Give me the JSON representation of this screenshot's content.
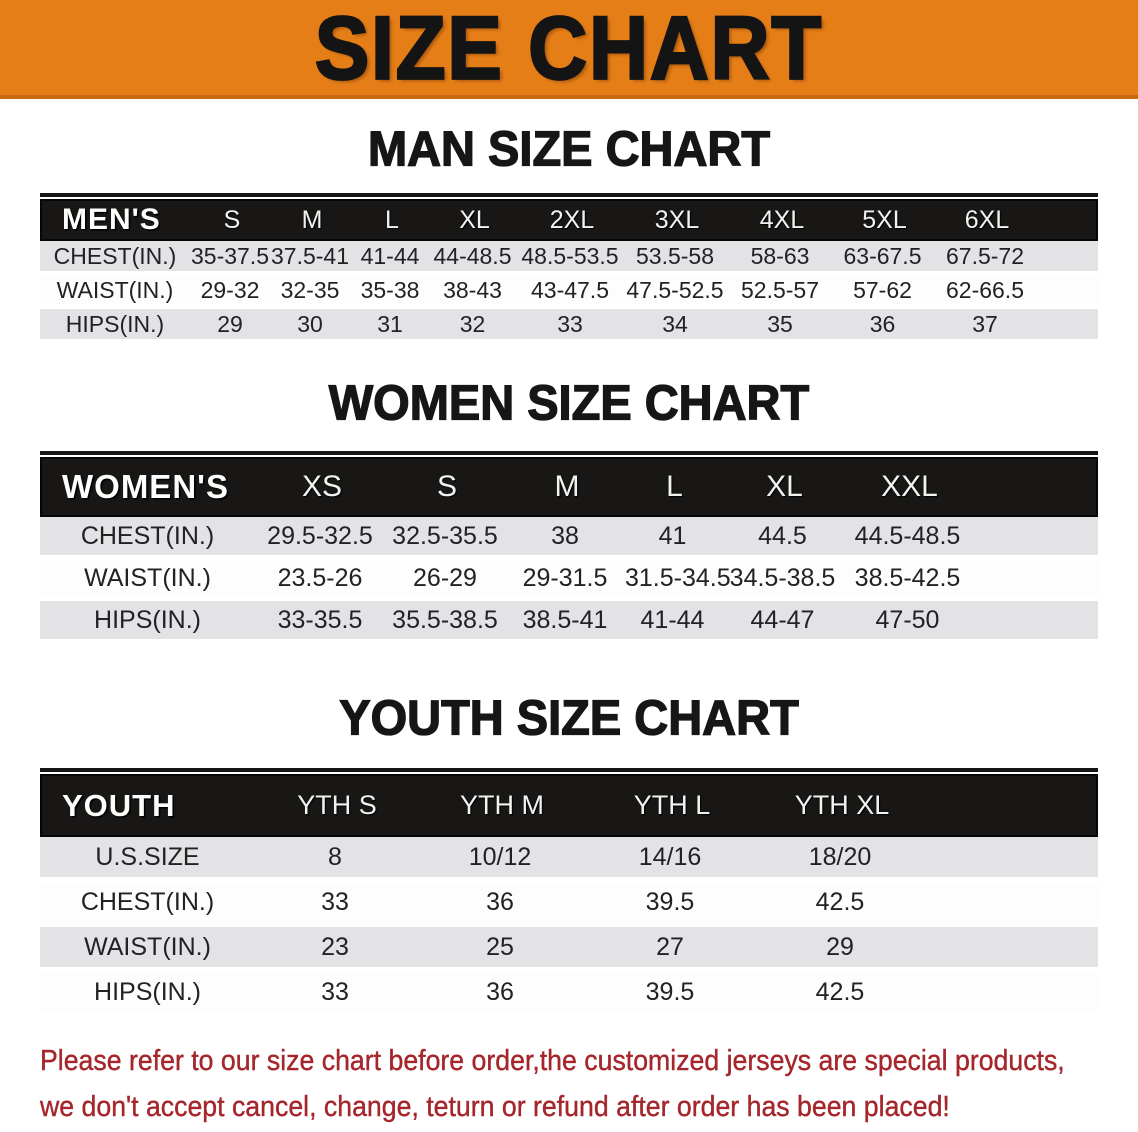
{
  "banner": {
    "title": "SIZE CHART"
  },
  "colors": {
    "banner_bg": "#E67E17",
    "banner_edge": "#C9690F",
    "header_bar": "#181716",
    "row_gray": "#E3E3E5",
    "footer_red": "#A5262B"
  },
  "sections": [
    {
      "heading": "MAN SIZE CHART",
      "table": {
        "label": "MEN'S",
        "columns": [
          "S",
          "M",
          "L",
          "XL",
          "2XL",
          "3XL",
          "4XL",
          "5XL",
          "6XL"
        ],
        "rows": [
          {
            "label": "CHEST(IN.)",
            "values": [
              "35-37.5",
              "37.5-41",
              "41-44",
              "44-48.5",
              "48.5-53.5",
              "53.5-58",
              "58-63",
              "63-67.5",
              "67.5-72"
            ]
          },
          {
            "label": "WAIST(IN.)",
            "values": [
              "29-32",
              "32-35",
              "35-38",
              "38-43",
              "43-47.5",
              "47.5-52.5",
              "52.5-57",
              "57-62",
              "62-66.5"
            ]
          },
          {
            "label": "HIPS(IN.)",
            "values": [
              "29",
              "30",
              "31",
              "32",
              "33",
              "34",
              "35",
              "36",
              "37"
            ]
          }
        ]
      }
    },
    {
      "heading": "WOMEN SIZE CHART",
      "table": {
        "label": "WOMEN'S",
        "columns": [
          "XS",
          "S",
          "M",
          "L",
          "XL",
          "XXL"
        ],
        "rows": [
          {
            "label": "CHEST(IN.)",
            "values": [
              "29.5-32.5",
              "32.5-35.5",
              "38",
              "41",
              "44.5",
              "44.5-48.5"
            ]
          },
          {
            "label": "WAIST(IN.)",
            "values": [
              "23.5-26",
              "26-29",
              "29-31.5",
              "31.5-34.5",
              "34.5-38.5",
              "38.5-42.5"
            ]
          },
          {
            "label": "HIPS(IN.)",
            "values": [
              "33-35.5",
              "35.5-38.5",
              "38.5-41",
              "41-44",
              "44-47",
              "47-50"
            ]
          }
        ]
      }
    },
    {
      "heading": "YOUTH SIZE CHART",
      "table": {
        "label": "YOUTH",
        "columns": [
          "YTH S",
          "YTH M",
          "YTH L",
          "YTH XL"
        ],
        "rows": [
          {
            "label": "U.S.SIZE",
            "values": [
              "8",
              "10/12",
              "14/16",
              "18/20"
            ]
          },
          {
            "label": "CHEST(IN.)",
            "values": [
              "33",
              "36",
              "39.5",
              "42.5"
            ]
          },
          {
            "label": "WAIST(IN.)",
            "values": [
              "23",
              "25",
              "27",
              "29"
            ]
          },
          {
            "label": "HIPS(IN.)",
            "values": [
              "33",
              "36",
              "39.5",
              "42.5"
            ]
          }
        ]
      }
    }
  ],
  "footer": {
    "line1": "Please refer to our size chart before order,the customized jerseys are special products,",
    "line2": "we don't accept cancel, change, teturn or refund after order has been placed!"
  }
}
